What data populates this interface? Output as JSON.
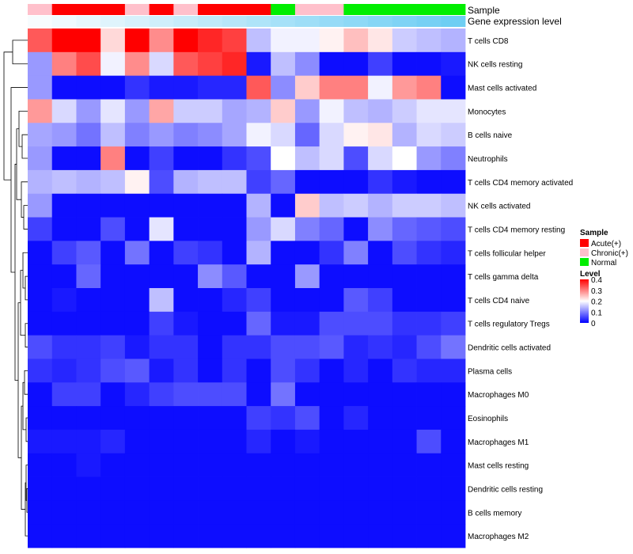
{
  "chart_data": {
    "type": "heatmap",
    "annotation_labels": {
      "sample": "Sample",
      "expression": "Gene expression level"
    },
    "sample_groups": [
      "Chronic",
      "Acute",
      "Acute",
      "Acute",
      "Chronic",
      "Acute",
      "Chronic",
      "Acute",
      "Acute",
      "Acute",
      "Normal",
      "Chronic",
      "Chronic",
      "Normal",
      "Normal",
      "Normal",
      "Normal",
      "Normal"
    ],
    "expression_level": [
      0.05,
      0.1,
      0.15,
      0.2,
      0.25,
      0.3,
      0.35,
      0.4,
      0.45,
      0.5,
      0.55,
      0.6,
      0.65,
      0.7,
      0.75,
      0.8,
      0.85,
      0.9
    ],
    "rows": [
      "T cells CD8",
      "NK cells resting",
      "Mast cells activated",
      "Monocytes",
      "B cells naive",
      "Neutrophils",
      "T cells CD4 memory activated",
      "NK cells activated",
      "T cells CD4 memory resting",
      "T cells follicular helper",
      "T cells gamma delta",
      "T cells CD4 naive",
      "T cells regulatory  Tregs",
      "Dendritic cells activated",
      "Plasma cells",
      "Macrophages M0",
      "Eosinophils",
      "Macrophages M1",
      "Mast cells resting",
      "Dendritic cells resting",
      "B cells memory",
      "Macrophages M2"
    ],
    "values": [
      [
        0.33,
        0.4,
        0.4,
        0.23,
        0.4,
        0.29,
        0.4,
        0.37,
        0.35,
        0.15,
        0.19,
        0.19,
        0.21,
        0.25,
        0.22,
        0.16,
        0.15,
        0.14
      ],
      [
        0.12,
        0.3,
        0.34,
        0.19,
        0.29,
        0.17,
        0.33,
        0.35,
        0.37,
        0.02,
        0.15,
        0.11,
        0.01,
        0.01,
        0.05,
        0.01,
        0.01,
        0.02
      ],
      [
        0.12,
        0.01,
        0.01,
        0.01,
        0.04,
        0.02,
        0.02,
        0.03,
        0.03,
        0.33,
        0.11,
        0.24,
        0.3,
        0.3,
        0.19,
        0.28,
        0.3,
        0.01
      ],
      [
        0.28,
        0.17,
        0.12,
        0.18,
        0.12,
        0.27,
        0.16,
        0.16,
        0.13,
        0.14,
        0.24,
        0.12,
        0.19,
        0.15,
        0.14,
        0.16,
        0.18,
        0.18
      ],
      [
        0.13,
        0.12,
        0.09,
        0.15,
        0.1,
        0.12,
        0.1,
        0.11,
        0.13,
        0.19,
        0.17,
        0.08,
        0.17,
        0.21,
        0.22,
        0.14,
        0.17,
        0.16
      ],
      [
        0.12,
        0.01,
        0.01,
        0.3,
        0.01,
        0.05,
        0.01,
        0.01,
        0.04,
        0.06,
        0.2,
        0.15,
        0.17,
        0.06,
        0.17,
        0.2,
        0.12,
        0.1
      ],
      [
        0.14,
        0.15,
        0.14,
        0.15,
        0.21,
        0.06,
        0.14,
        0.15,
        0.15,
        0.05,
        0.08,
        0.01,
        0.01,
        0.01,
        0.04,
        0.02,
        0.01,
        0.01
      ],
      [
        0.12,
        0.01,
        0.01,
        0.01,
        0.01,
        0.01,
        0.01,
        0.01,
        0.01,
        0.14,
        0.01,
        0.24,
        0.15,
        0.16,
        0.14,
        0.16,
        0.16,
        0.15
      ],
      [
        0.05,
        0.01,
        0.01,
        0.06,
        0.01,
        0.18,
        0.01,
        0.01,
        0.01,
        0.12,
        0.17,
        0.1,
        0.08,
        0.01,
        0.11,
        0.08,
        0.07,
        0.06
      ],
      [
        0.01,
        0.05,
        0.07,
        0.01,
        0.09,
        0.01,
        0.05,
        0.04,
        0.01,
        0.14,
        0.01,
        0.01,
        0.04,
        0.1,
        0.01,
        0.06,
        0.04,
        0.03
      ],
      [
        0.01,
        0.01,
        0.08,
        0.01,
        0.01,
        0.01,
        0.01,
        0.11,
        0.07,
        0.01,
        0.01,
        0.12,
        0.01,
        0.01,
        0.01,
        0.01,
        0.01,
        0.01
      ],
      [
        0.01,
        0.02,
        0.01,
        0.01,
        0.01,
        0.15,
        0.01,
        0.01,
        0.03,
        0.05,
        0.01,
        0.01,
        0.01,
        0.07,
        0.05,
        0.01,
        0.01,
        0.01
      ],
      [
        0.01,
        0.01,
        0.01,
        0.01,
        0.01,
        0.05,
        0.02,
        0.01,
        0.01,
        0.08,
        0.02,
        0.02,
        0.06,
        0.06,
        0.06,
        0.04,
        0.04,
        0.05
      ],
      [
        0.06,
        0.04,
        0.04,
        0.05,
        0.02,
        0.04,
        0.04,
        0.01,
        0.04,
        0.04,
        0.06,
        0.06,
        0.07,
        0.03,
        0.04,
        0.03,
        0.06,
        0.09
      ],
      [
        0.04,
        0.03,
        0.04,
        0.06,
        0.07,
        0.02,
        0.04,
        0.01,
        0.04,
        0.01,
        0.06,
        0.04,
        0.01,
        0.03,
        0.01,
        0.04,
        0.03,
        0.03
      ],
      [
        0.01,
        0.05,
        0.05,
        0.01,
        0.03,
        0.05,
        0.06,
        0.06,
        0.06,
        0.01,
        0.09,
        0.01,
        0.01,
        0.01,
        0.01,
        0.01,
        0.01,
        0.01
      ],
      [
        0.01,
        0.01,
        0.01,
        0.01,
        0.01,
        0.01,
        0.01,
        0.01,
        0.01,
        0.05,
        0.04,
        0.06,
        0.01,
        0.03,
        0.01,
        0.01,
        0.01,
        0.01
      ],
      [
        0.02,
        0.02,
        0.02,
        0.03,
        0.01,
        0.01,
        0.01,
        0.01,
        0.01,
        0.03,
        0.01,
        0.02,
        0.01,
        0.01,
        0.01,
        0.01,
        0.06,
        0.01
      ],
      [
        0.01,
        0.01,
        0.02,
        0.01,
        0.01,
        0.01,
        0.01,
        0.01,
        0.01,
        0.01,
        0.01,
        0.01,
        0.01,
        0.01,
        0.01,
        0.01,
        0.01,
        0.01
      ],
      [
        0.01,
        0.01,
        0.01,
        0.01,
        0.01,
        0.01,
        0.01,
        0.01,
        0.01,
        0.01,
        0.01,
        0.01,
        0.01,
        0.01,
        0.01,
        0.01,
        0.01,
        0.01
      ],
      [
        0.01,
        0.01,
        0.01,
        0.01,
        0.01,
        0.01,
        0.01,
        0.01,
        0.01,
        0.01,
        0.01,
        0.01,
        0.01,
        0.01,
        0.01,
        0.01,
        0.01,
        0.01
      ],
      [
        0.01,
        0.01,
        0.01,
        0.01,
        0.01,
        0.01,
        0.01,
        0.01,
        0.01,
        0.01,
        0.01,
        0.01,
        0.01,
        0.01,
        0.01,
        0.01,
        0.01,
        0.01
      ]
    ],
    "color_scale": {
      "min": 0,
      "mid": 0.2,
      "max": 0.4,
      "low": "#0000ff",
      "mid_color": "#ffffff",
      "high": "#ff0000"
    },
    "legend": {
      "sample_title": "Sample",
      "sample_entries": [
        {
          "label": "Acute(+)",
          "color": "#ff0000"
        },
        {
          "label": "Chronic(+)",
          "color": "#ffc0cb"
        },
        {
          "label": "Normal",
          "color": "#00ee00"
        }
      ],
      "level_title": "Level",
      "level_ticks": [
        "0.4",
        "0.3",
        "0.2",
        "0.1",
        "0"
      ],
      "placement": "right"
    },
    "group_colors": {
      "Acute": "#ff0000",
      "Chronic": "#ffc0cb",
      "Normal": "#00ee00"
    },
    "expression_colors": {
      "low": "#ffffff",
      "high": "#5ec8f2"
    },
    "dendrogram": "rows clustered (hierarchical)"
  }
}
